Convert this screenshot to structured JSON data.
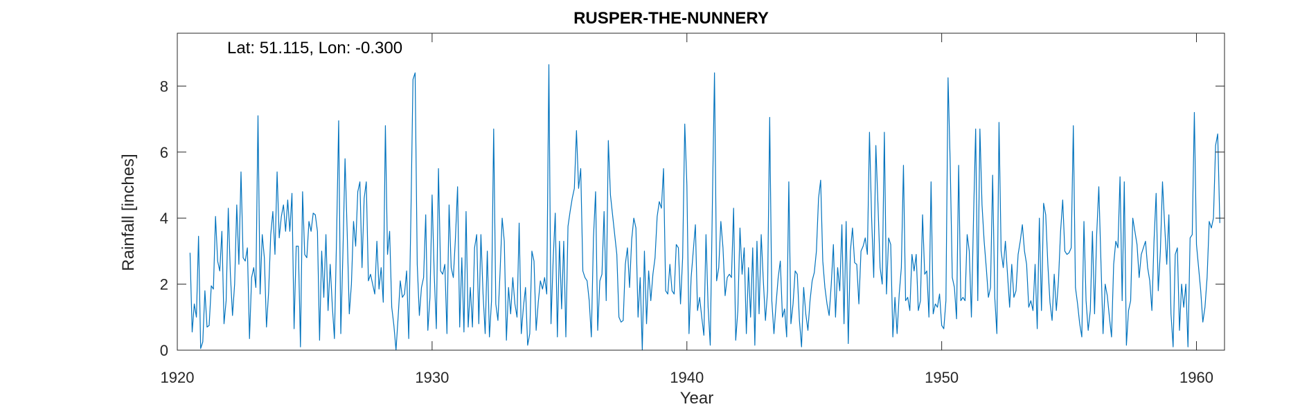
{
  "chart_data": {
    "type": "line",
    "title": "RUSPER-THE-NUNNERY",
    "annotation": "Lat: 51.115, Lon: -0.300",
    "xlabel": "Year",
    "ylabel": "Rainfall [inches]",
    "xlim": [
      1920,
      1961.1
    ],
    "ylim": [
      0,
      9.6
    ],
    "xticks": [
      1920,
      1930,
      1940,
      1950,
      1960
    ],
    "yticks": [
      0,
      2,
      4,
      6,
      8
    ],
    "grid": false,
    "line_color": "#0072BD",
    "series": [
      {
        "x_start": 1920.5,
        "x_step": 0.083333,
        "values": [
          2.95,
          0.55,
          1.4,
          1.0,
          3.45,
          0.05,
          0.25,
          1.8,
          0.7,
          0.75,
          1.95,
          1.85,
          4.05,
          2.7,
          2.4,
          3.6,
          0.8,
          1.5,
          4.3,
          2.3,
          1.05,
          2.0,
          4.4,
          2.6,
          5.4,
          2.8,
          2.7,
          3.1,
          0.35,
          2.2,
          2.5,
          1.9,
          7.1,
          1.7,
          3.5,
          2.8,
          0.7,
          1.75,
          3.5,
          4.2,
          2.9,
          5.4,
          3.4,
          4.05,
          4.4,
          3.6,
          4.55,
          3.6,
          4.75,
          0.65,
          3.15,
          3.15,
          0.1,
          4.8,
          2.9,
          2.8,
          3.9,
          3.6,
          4.15,
          4.1,
          3.6,
          0.3,
          3.0,
          1.6,
          3.5,
          1.2,
          2.6,
          1.35,
          0.35,
          3.4,
          6.95,
          0.5,
          2.95,
          5.8,
          3.6,
          1.1,
          2.0,
          3.9,
          3.15,
          4.8,
          5.1,
          2.5,
          4.6,
          5.1,
          2.1,
          2.3,
          2.0,
          1.7,
          3.3,
          1.85,
          2.5,
          1.45,
          6.8,
          2.9,
          3.6,
          1.3,
          0.75,
          0.0,
          1.0,
          2.1,
          1.6,
          1.7,
          2.4,
          0.35,
          4.0,
          8.2,
          8.4,
          2.6,
          1.05,
          1.9,
          2.2,
          4.1,
          0.6,
          1.6,
          4.7,
          2.3,
          0.65,
          5.5,
          2.4,
          2.3,
          2.6,
          0.5,
          4.4,
          2.5,
          2.2,
          3.4,
          4.95,
          0.7,
          2.8,
          0.55,
          4.2,
          0.7,
          1.9,
          0.7,
          3.1,
          3.5,
          0.8,
          3.5,
          1.7,
          0.5,
          3.0,
          0.4,
          1.5,
          6.7,
          1.4,
          0.9,
          2.35,
          4.0,
          3.3,
          0.3,
          1.9,
          1.1,
          2.2,
          1.4,
          1.0,
          3.85,
          0.5,
          1.3,
          1.9,
          0.15,
          0.5,
          3.0,
          2.7,
          0.6,
          1.45,
          2.1,
          1.85,
          2.2,
          1.7,
          8.65,
          0.8,
          2.7,
          4.15,
          0.4,
          3.3,
          1.25,
          3.3,
          0.4,
          3.75,
          4.2,
          4.6,
          4.9,
          6.65,
          4.9,
          5.5,
          2.4,
          2.2,
          2.1,
          1.5,
          0.4,
          3.4,
          4.8,
          0.6,
          2.1,
          2.3,
          4.2,
          1.5,
          6.35,
          4.7,
          4.1,
          3.5,
          2.9,
          1.0,
          0.85,
          0.9,
          2.6,
          3.1,
          1.9,
          3.35,
          4.0,
          3.7,
          1.0,
          2.2,
          0.0,
          3.0,
          0.8,
          2.4,
          1.5,
          2.3,
          2.8,
          4.05,
          4.5,
          4.3,
          5.5,
          1.8,
          1.7,
          2.6,
          1.8,
          1.7,
          3.2,
          3.1,
          1.4,
          2.8,
          6.85,
          5.0,
          0.5,
          2.2,
          3.0,
          3.8,
          1.2,
          1.6,
          1.0,
          0.45,
          3.5,
          1.3,
          0.15,
          4.4,
          8.4,
          2.1,
          2.5,
          3.9,
          3.1,
          1.65,
          2.2,
          2.3,
          2.2,
          4.3,
          0.3,
          1.2,
          3.7,
          2.3,
          3.1,
          0.5,
          2.5,
          1.0,
          3.1,
          0.15,
          3.3,
          1.1,
          3.5,
          2.1,
          0.9,
          1.8,
          7.05,
          1.5,
          0.5,
          1.4,
          2.2,
          2.7,
          1.0,
          1.25,
          0.4,
          5.1,
          0.8,
          1.4,
          2.4,
          2.3,
          0.9,
          0.1,
          1.9,
          1.1,
          0.6,
          1.5,
          2.1,
          2.35,
          3.0,
          4.6,
          5.15,
          2.7,
          1.9,
          1.4,
          1.05,
          2.0,
          3.2,
          1.0,
          2.5,
          1.8,
          3.8,
          0.8,
          3.9,
          0.2,
          3.0,
          3.7,
          2.65,
          2.6,
          1.4,
          3.0,
          3.15,
          3.4,
          2.9,
          6.6,
          4.0,
          2.2,
          6.2,
          4.4,
          2.5,
          2.0,
          6.6,
          1.7,
          3.4,
          3.2,
          0.4,
          1.6,
          0.5,
          1.7,
          2.5,
          5.6,
          1.5,
          1.6,
          1.2,
          2.9,
          2.4,
          2.9,
          1.2,
          1.5,
          4.1,
          2.3,
          2.4,
          1.0,
          5.1,
          1.1,
          1.4,
          1.3,
          1.7,
          0.75,
          0.65,
          1.5,
          8.25,
          5.7,
          2.2,
          1.9,
          0.95,
          5.6,
          1.5,
          1.6,
          1.5,
          3.5,
          3.0,
          1.0,
          4.0,
          6.7,
          1.5,
          6.7,
          4.4,
          3.3,
          2.5,
          1.6,
          1.9,
          5.3,
          1.6,
          0.5,
          6.9,
          3.0,
          2.5,
          3.3,
          2.3,
          1.3,
          2.6,
          1.6,
          1.8,
          2.9,
          3.3,
          3.8,
          3.0,
          2.6,
          1.3,
          1.5,
          1.2,
          2.6,
          0.65,
          4.0,
          1.2,
          4.45,
          4.1,
          2.6,
          1.45,
          0.9,
          2.3,
          1.2,
          2.1,
          3.6,
          4.55,
          3.0,
          2.9,
          2.95,
          3.1,
          6.8,
          1.9,
          1.4,
          0.8,
          0.4,
          3.9,
          1.5,
          0.6,
          1.2,
          3.6,
          1.1,
          3.5,
          4.95,
          2.7,
          0.5,
          2.0,
          1.65,
          1.0,
          0.4,
          2.6,
          3.3,
          3.1,
          5.25,
          1.5,
          5.1,
          0.15,
          1.2,
          1.5,
          4.0,
          3.6,
          3.2,
          2.2,
          2.9,
          3.1,
          3.3,
          2.5,
          2.1,
          1.2,
          3.3,
          4.75,
          1.8,
          3.0,
          5.1,
          3.8,
          2.6,
          4.1,
          1.1,
          0.1,
          2.9,
          3.1,
          0.6,
          2.0,
          1.3,
          2.0,
          0.1,
          3.4,
          3.5,
          7.2,
          3.2,
          2.5,
          1.8,
          0.85,
          1.3,
          2.2,
          3.9,
          3.7,
          4.0,
          6.2,
          6.55,
          3.85
        ]
      }
    ]
  }
}
